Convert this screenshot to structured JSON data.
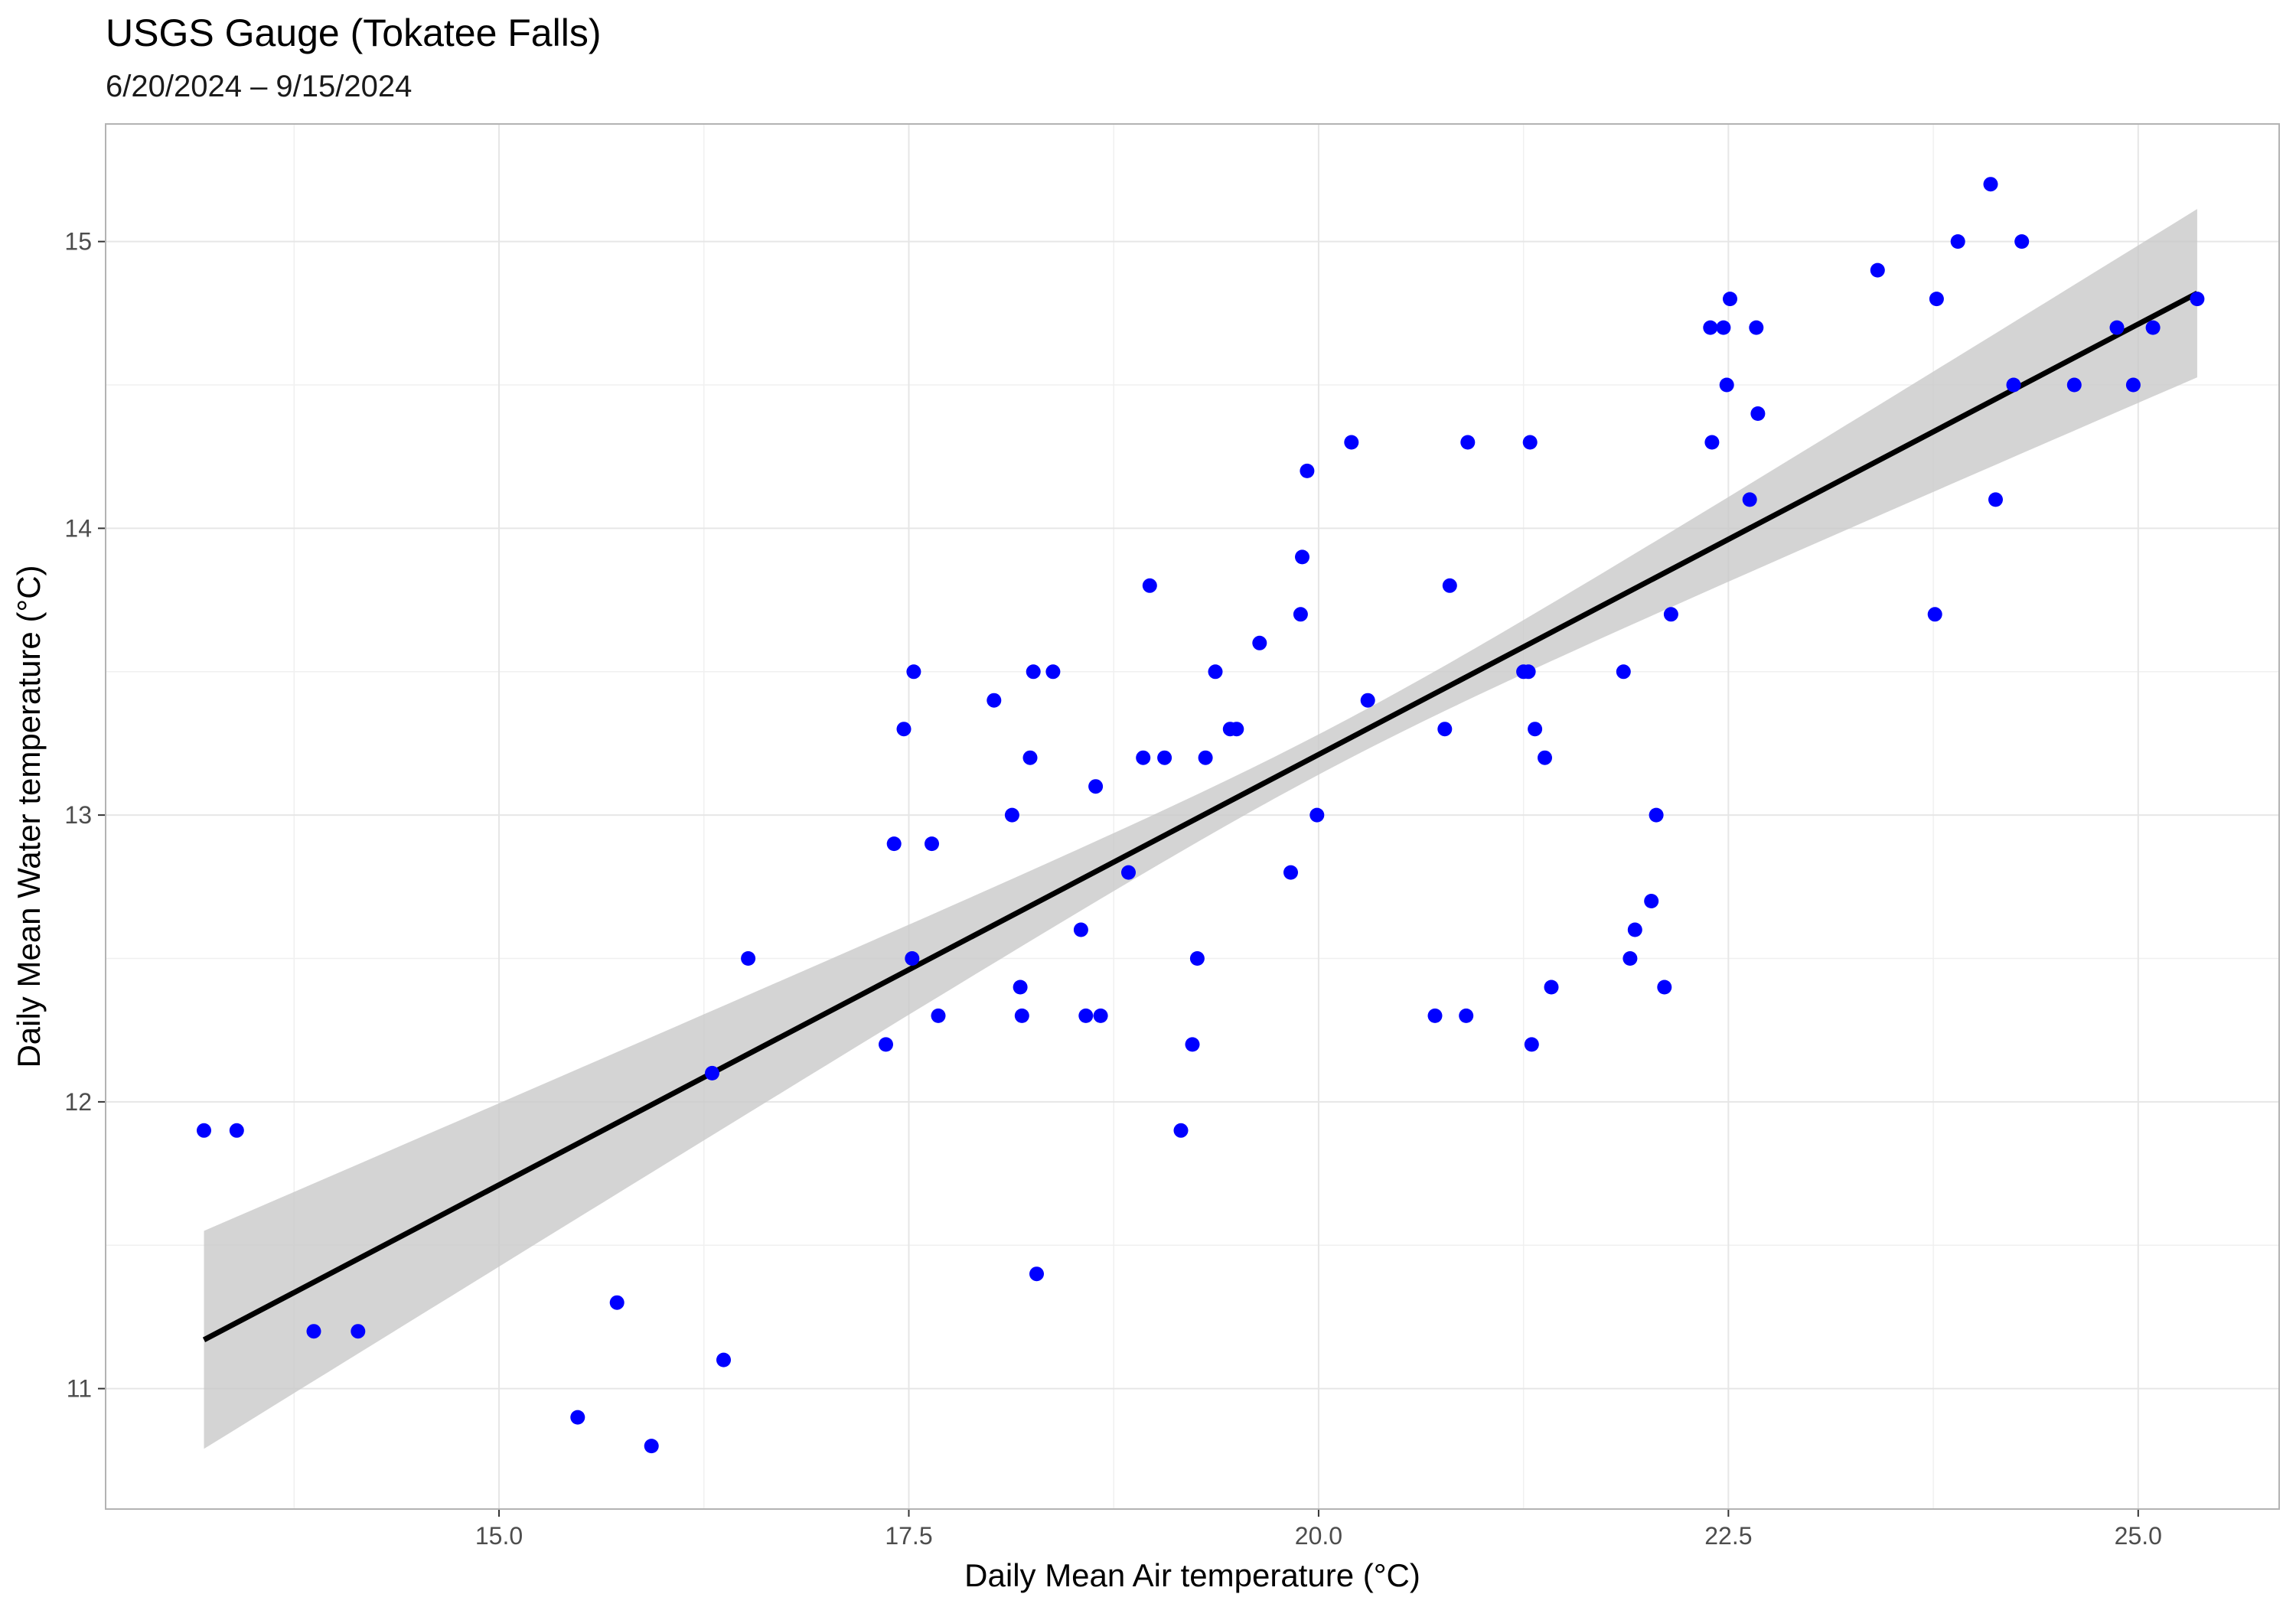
{
  "chart_data": {
    "type": "scatter",
    "title": "USGS Gauge (Tokatee Falls)",
    "subtitle": "6/20/2024 – 9/15/2024",
    "xlabel": "Daily Mean Air temperature (°C)",
    "ylabel": "Daily Mean Water temperature (°C)",
    "xlim": [
      12.6,
      25.86
    ],
    "ylim": [
      10.58,
      15.41
    ],
    "x_ticks": [
      15.0,
      17.5,
      20.0,
      22.5,
      25.0
    ],
    "x_tick_labels": [
      "15.0",
      "17.5",
      "20.0",
      "22.5",
      "25.0"
    ],
    "y_ticks": [
      11,
      12,
      13,
      14,
      15
    ],
    "y_tick_labels": [
      "11",
      "12",
      "13",
      "14",
      "15"
    ],
    "grid": true,
    "colors": {
      "points": "#0000ff",
      "trend": "#000000",
      "band": "#c8c8c8",
      "grid": "#e6e6e6",
      "panel_border": "#b3b3b3"
    },
    "points": {
      "x": [
        13.2,
        13.4,
        13.87,
        14.14,
        15.48,
        15.72,
        15.93,
        16.3,
        16.37,
        16.52,
        17.36,
        17.41,
        17.47,
        17.52,
        17.53,
        17.64,
        17.68,
        18.02,
        18.13,
        18.18,
        18.19,
        18.24,
        18.26,
        18.28,
        18.38,
        18.55,
        18.58,
        18.64,
        18.67,
        18.84,
        18.93,
        18.97,
        19.06,
        19.16,
        19.23,
        19.26,
        19.31,
        19.37,
        19.46,
        19.5,
        19.64,
        19.83,
        19.89,
        19.9,
        19.93,
        19.99,
        20.2,
        20.3,
        20.71,
        20.77,
        20.8,
        20.9,
        20.91,
        21.25,
        21.28,
        21.29,
        21.3,
        21.32,
        21.38,
        21.42,
        21.86,
        21.9,
        21.93,
        22.03,
        22.06,
        22.11,
        22.15,
        22.39,
        22.4,
        22.47,
        22.49,
        22.51,
        22.63,
        22.67,
        22.68,
        23.41,
        23.76,
        23.77,
        23.9,
        24.1,
        24.13,
        24.24,
        24.29,
        24.61,
        24.87,
        24.97,
        25.09,
        25.36
      ],
      "y": [
        11.9,
        11.9,
        11.2,
        11.2,
        10.9,
        11.3,
        10.8,
        12.1,
        11.1,
        12.5,
        12.2,
        12.9,
        13.3,
        12.5,
        13.5,
        12.9,
        12.3,
        13.4,
        13.0,
        12.4,
        12.3,
        13.2,
        13.5,
        11.4,
        13.5,
        12.6,
        12.3,
        13.1,
        12.3,
        12.8,
        13.2,
        13.8,
        13.2,
        11.9,
        12.2,
        12.5,
        13.2,
        13.5,
        13.3,
        13.3,
        13.6,
        12.8,
        13.7,
        13.9,
        14.2,
        13.0,
        14.3,
        13.4,
        12.3,
        13.3,
        13.8,
        12.3,
        14.3,
        13.5,
        13.5,
        14.3,
        12.2,
        13.3,
        13.2,
        12.4,
        13.5,
        12.5,
        12.6,
        12.7,
        13.0,
        12.4,
        13.7,
        14.7,
        14.3,
        14.7,
        14.5,
        14.8,
        14.1,
        14.7,
        14.4,
        14.9,
        13.7,
        14.8,
        15.0,
        15.2,
        14.1,
        14.5,
        15.0,
        14.5,
        14.7,
        14.5,
        14.7,
        14.8
      ]
    },
    "trend_line": {
      "x": [
        13.2,
        25.36
      ],
      "y": [
        11.17,
        14.82
      ],
      "ci_lower": [
        10.79,
        14.52
      ],
      "ci_upper": [
        11.55,
        15.12
      ],
      "ci_at_mean": 0.07
    }
  }
}
